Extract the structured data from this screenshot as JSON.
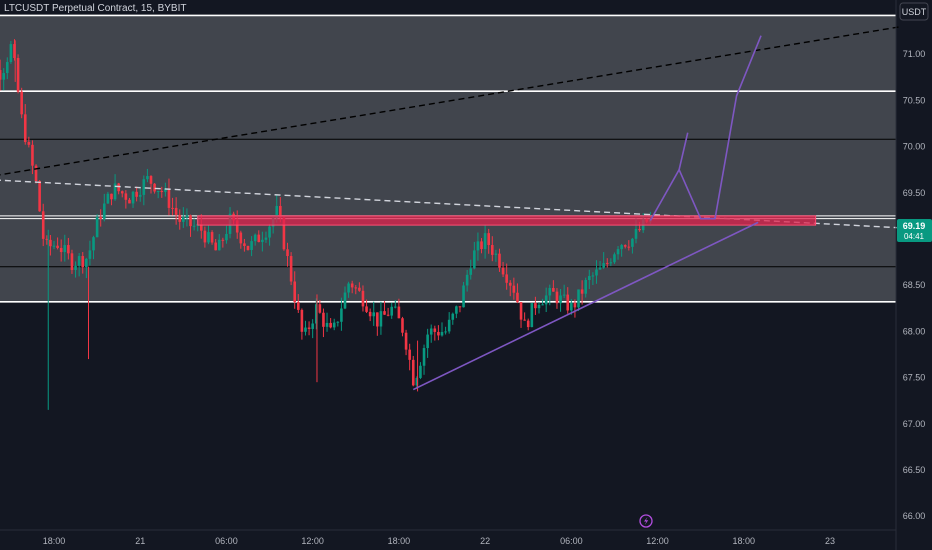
{
  "header": {
    "symbol_title": "LTCUSDT Perpetual Contract, 15, BYBIT"
  },
  "axis": {
    "currency_button": "USDT"
  },
  "price_tag": {
    "price": "69.19",
    "countdown": "04:41",
    "color": "#089981"
  },
  "colors": {
    "background": "#131722",
    "zone_fill": "#4a4d55",
    "up": "#089981",
    "down": "#f23645",
    "level_line": "#ffffff",
    "purple": "#7e57c2",
    "resistance_box": "#e0234e"
  },
  "footer": {
    "logo_icon": "tradingview-bolt-icon"
  },
  "chart_data": {
    "type": "candlestick",
    "title": "LTCUSDT Perpetual Contract, 15, BYBIT",
    "ylabel": "USDT",
    "ylim": [
      65.85,
      71.5
    ],
    "y_ticks": [
      "71.00",
      "70.50",
      "70.00",
      "69.50",
      "69.00",
      "68.50",
      "68.00",
      "67.50",
      "67.00",
      "66.50",
      "66.00"
    ],
    "x_ticks": [
      "18:00",
      "21",
      "06:00",
      "12:00",
      "18:00",
      "22",
      "06:00",
      "12:00",
      "18:00",
      "23"
    ],
    "x_tick_hours": [
      18,
      24,
      30,
      36,
      42,
      48,
      54,
      60,
      66,
      72
    ],
    "candle_range_hours": [
      12.5,
      59.5
    ],
    "horizontal_levels": [
      71.42,
      70.6,
      70.08,
      69.25,
      69.22,
      68.7,
      68.32
    ],
    "shaded_zones": [
      [
        68.32,
        70.6
      ],
      [
        70.6,
        71.42
      ]
    ],
    "resistance_box": {
      "x": [
        28.0,
        71.0
      ],
      "y": [
        69.15,
        69.25
      ]
    },
    "dashed_trendlines": [
      {
        "x": [
          12.5,
          77.0
        ],
        "y": [
          69.65,
          71.3
        ],
        "color": "#000000"
      },
      {
        "x": [
          12.5,
          77.0
        ],
        "y": [
          69.65,
          69.12
        ],
        "color": "#d1d4dc"
      }
    ],
    "ascending_support": {
      "x": [
        43.0,
        67.0
      ],
      "y": [
        67.37,
        69.18
      ]
    },
    "projection_path": {
      "x": [
        59.5,
        61.5,
        63.0,
        64.0,
        65.5,
        67.2
      ],
      "y": [
        69.2,
        69.75,
        69.22,
        69.22,
        70.55,
        71.2
      ]
    },
    "projection_spike": {
      "x": [
        61.5,
        62.1
      ],
      "y": [
        69.75,
        70.15
      ]
    },
    "last_price": 69.19
  }
}
